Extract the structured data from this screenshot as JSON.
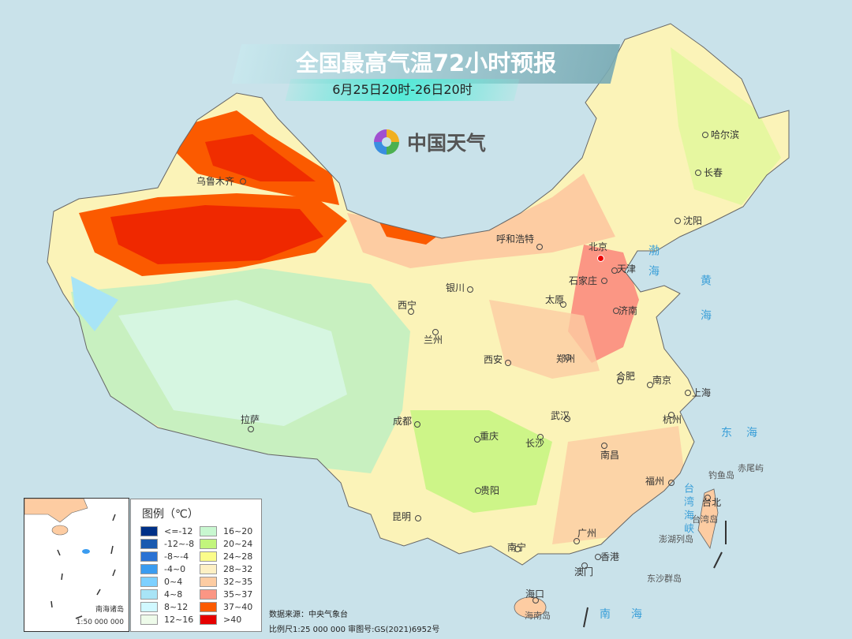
{
  "header": {
    "title": "全国最高气温72小时预报",
    "subtitle": "6月25日20时-26日20时",
    "logo_text": "中国天气"
  },
  "cities": [
    {
      "name": "乌鲁木齐"
    },
    {
      "name": "哈尔滨"
    },
    {
      "name": "长春"
    },
    {
      "name": "沈阳"
    },
    {
      "name": "呼和浩特"
    },
    {
      "name": "北京"
    },
    {
      "name": "天津"
    },
    {
      "name": "石家庄"
    },
    {
      "name": "太原"
    },
    {
      "name": "济南"
    },
    {
      "name": "银川"
    },
    {
      "name": "西宁"
    },
    {
      "name": "兰州"
    },
    {
      "name": "西安"
    },
    {
      "name": "郑州"
    },
    {
      "name": "合肥"
    },
    {
      "name": "南京"
    },
    {
      "name": "上海"
    },
    {
      "name": "武汉"
    },
    {
      "name": "杭州"
    },
    {
      "name": "成都"
    },
    {
      "name": "重庆"
    },
    {
      "name": "长沙"
    },
    {
      "name": "南昌"
    },
    {
      "name": "拉萨"
    },
    {
      "name": "福州"
    },
    {
      "name": "台北"
    },
    {
      "name": "贵阳"
    },
    {
      "name": "昆明"
    },
    {
      "name": "南宁"
    },
    {
      "name": "广州"
    },
    {
      "name": "香港"
    },
    {
      "name": "澳门"
    },
    {
      "name": "海口"
    }
  ],
  "seas": {
    "bohai": "渤海",
    "huanghai": "黄海",
    "donghai": "东海",
    "nanhai": "南海",
    "taiwan_strait": "台湾海峡"
  },
  "islands": {
    "diaoyu": "钓鱼岛",
    "chiwei": "赤尾屿",
    "taiwan": "台湾岛",
    "penghu": "澎湖列岛",
    "dongsha": "东沙群岛",
    "hainan": "海南岛"
  },
  "legend": {
    "title": "图例（℃）",
    "items": [
      {
        "label": "<=-12",
        "color": "#003087"
      },
      {
        "label": "-12~-8",
        "color": "#1a5ab0"
      },
      {
        "label": "-8~-4",
        "color": "#2a72d4"
      },
      {
        "label": "-4~0",
        "color": "#3a9cf0"
      },
      {
        "label": "0~4",
        "color": "#7dd0ff"
      },
      {
        "label": "4~8",
        "color": "#a8e4f6"
      },
      {
        "label": "8~12",
        "color": "#d0f8ff"
      },
      {
        "label": "12~16",
        "color": "#eefbea"
      },
      {
        "label": "16~20",
        "color": "#c8f7d0"
      },
      {
        "label": "20~24",
        "color": "#c2f57c"
      },
      {
        "label": "24~28",
        "color": "#fbfc8a"
      },
      {
        "label": "28~32",
        "color": "#fdf0c4"
      },
      {
        "label": "32~35",
        "color": "#fdcca2"
      },
      {
        "label": "35~37",
        "color": "#fb9684"
      },
      {
        "label": "37~40",
        "color": "#fb5a00"
      },
      {
        "label": ">40",
        "color": "#e60000"
      }
    ]
  },
  "inset": {
    "name": "南海诸岛",
    "scale": "1:50 000 000"
  },
  "footer": {
    "source": "数据来源：中央气象台",
    "scale_approval": "比例尺1:25 000 000   审图号:GS(2021)6952号"
  }
}
